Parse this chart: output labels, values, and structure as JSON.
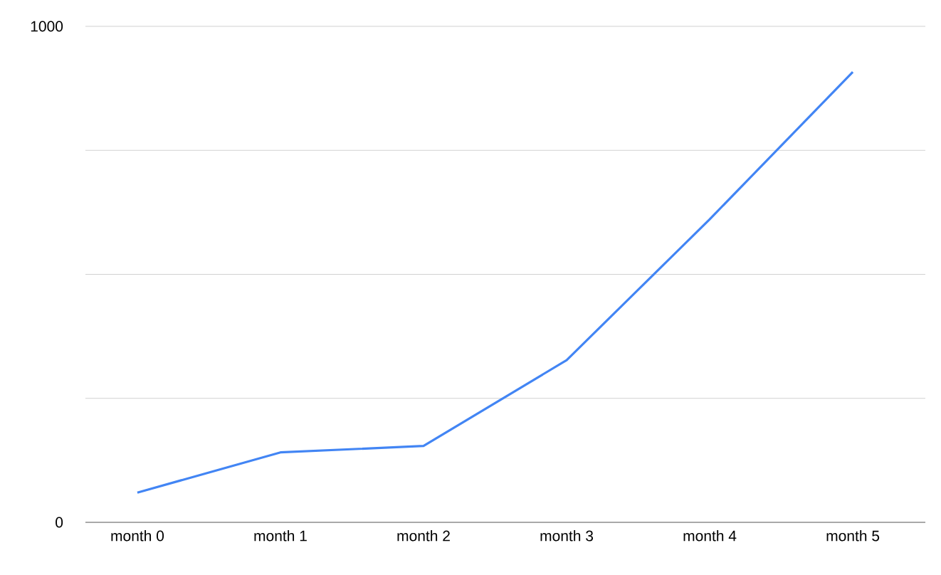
{
  "chart_data": {
    "type": "line",
    "categories": [
      "month 0",
      "month 1",
      "month 2",
      "month 3",
      "month 4",
      "month 5"
    ],
    "series": [
      {
        "color": "#4285f4",
        "values": [
          60,
          141,
          154,
          327,
          611,
          908
        ]
      }
    ],
    "ylim": [
      0,
      1000
    ],
    "yticks": [
      0,
      {
        "value": 250,
        "label": null
      },
      {
        "value": 500,
        "label": null
      },
      {
        "value": 750,
        "label": null
      },
      1000
    ],
    "grid": "y"
  }
}
